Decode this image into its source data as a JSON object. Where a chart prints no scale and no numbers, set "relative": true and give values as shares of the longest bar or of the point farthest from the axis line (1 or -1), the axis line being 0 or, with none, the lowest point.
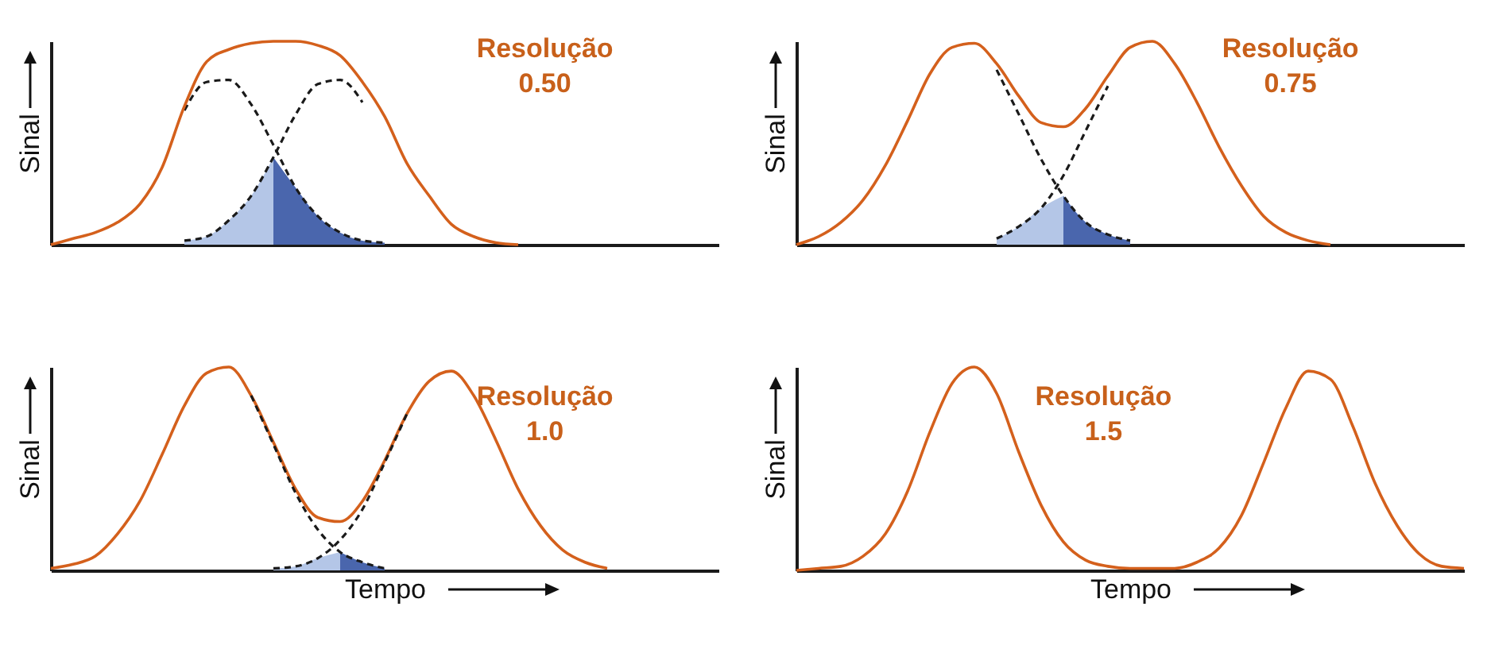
{
  "chart_data": [
    {
      "type": "line",
      "relative": true,
      "tick_labels": false,
      "ylabel": "Sinal",
      "annotations": [
        "Resolução",
        "0.50"
      ],
      "categories": [
        null,
        null,
        null,
        null,
        null,
        null,
        null,
        null,
        null,
        null,
        null,
        null,
        null,
        null,
        null,
        null,
        null,
        null,
        null,
        null,
        null,
        null,
        null,
        null,
        null,
        null,
        null,
        null,
        null,
        null,
        null
      ],
      "series": [
        {
          "type": "area",
          "color": "#b4c6e7",
          "values": [
            null,
            null,
            null,
            null,
            null,
            null,
            0.02,
            0.04,
            0.12,
            0.24,
            0.43,
            null,
            null,
            null,
            null,
            null,
            null,
            null,
            null,
            null,
            null,
            null,
            null,
            null,
            null,
            null,
            null,
            null,
            null,
            null,
            null
          ]
        },
        {
          "type": "area",
          "color": "#4a66ad",
          "values": [
            null,
            null,
            null,
            null,
            null,
            null,
            null,
            null,
            null,
            null,
            0.43,
            0.28,
            0.14,
            0.06,
            0.02,
            0.01,
            null,
            null,
            null,
            null,
            null,
            null,
            null,
            null,
            null,
            null,
            null,
            null,
            null,
            null,
            null
          ]
        },
        {
          "type": "line",
          "line_style": "dashed",
          "color": "#1a1a1a",
          "values": [
            null,
            null,
            null,
            null,
            null,
            null,
            0.66,
            0.8,
            0.81,
            0.69,
            0.49,
            0.28,
            0.14,
            0.06,
            0.02,
            0.01,
            null,
            null,
            null,
            null,
            null,
            null,
            null,
            null,
            null,
            null,
            null,
            null,
            null,
            null,
            null
          ]
        },
        {
          "type": "line",
          "line_style": "dashed",
          "color": "#1a1a1a",
          "values": [
            null,
            null,
            null,
            null,
            null,
            null,
            0.02,
            0.04,
            0.12,
            0.24,
            0.43,
            0.64,
            0.79,
            0.81,
            0.7,
            null,
            null,
            null,
            null,
            null,
            null,
            null,
            null,
            null,
            null,
            null,
            null,
            null,
            null,
            null,
            null
          ]
        },
        {
          "type": "line",
          "line_style": "solid",
          "color": "#d4601c",
          "values": [
            0,
            0.03,
            0.06,
            0.11,
            0.2,
            0.38,
            0.68,
            0.9,
            0.96,
            0.99,
            1.0,
            1.0,
            0.98,
            0.93,
            0.8,
            0.63,
            0.4,
            0.24,
            0.1,
            0.04,
            0.01,
            0,
            null,
            null,
            null,
            null,
            null,
            null,
            null,
            null,
            null
          ]
        }
      ]
    },
    {
      "type": "line",
      "relative": true,
      "tick_labels": false,
      "ylabel": "Sinal",
      "annotations": [
        "Resolução",
        "0.75"
      ],
      "categories": [
        null,
        null,
        null,
        null,
        null,
        null,
        null,
        null,
        null,
        null,
        null,
        null,
        null,
        null,
        null,
        null,
        null,
        null,
        null,
        null,
        null,
        null,
        null,
        null,
        null,
        null,
        null,
        null,
        null,
        null,
        null
      ],
      "series": [
        {
          "type": "area",
          "color": "#b4c6e7",
          "values": [
            null,
            null,
            null,
            null,
            null,
            null,
            null,
            null,
            null,
            0.03,
            0.09,
            0.18,
            0.24,
            null,
            null,
            null,
            null,
            null,
            null,
            null,
            null,
            null,
            null,
            null,
            null,
            null,
            null,
            null,
            null,
            null,
            null
          ]
        },
        {
          "type": "area",
          "color": "#4a66ad",
          "values": [
            null,
            null,
            null,
            null,
            null,
            null,
            null,
            null,
            null,
            null,
            null,
            null,
            0.24,
            0.11,
            0.05,
            0.02,
            null,
            null,
            null,
            null,
            null,
            null,
            null,
            null,
            null,
            null,
            null,
            null,
            null,
            null,
            null
          ]
        },
        {
          "type": "line",
          "line_style": "dashed",
          "color": "#1a1a1a",
          "values": [
            null,
            null,
            null,
            null,
            null,
            null,
            null,
            null,
            null,
            0.86,
            0.64,
            0.42,
            0.24,
            0.11,
            0.05,
            0.02,
            null,
            null,
            null,
            null,
            null,
            null,
            null,
            null,
            null,
            null,
            null,
            null,
            null,
            null,
            null
          ]
        },
        {
          "type": "line",
          "line_style": "dashed",
          "color": "#1a1a1a",
          "values": [
            null,
            null,
            null,
            null,
            null,
            null,
            null,
            null,
            null,
            0.03,
            0.09,
            0.18,
            0.34,
            0.56,
            0.78,
            null,
            null,
            null,
            null,
            null,
            null,
            null,
            null,
            null,
            null,
            null,
            null,
            null,
            null,
            null,
            null
          ]
        },
        {
          "type": "line",
          "line_style": "solid",
          "color": "#d4601c",
          "values": [
            0,
            0.04,
            0.11,
            0.22,
            0.39,
            0.61,
            0.84,
            0.97,
            0.99,
            0.89,
            0.73,
            0.6,
            0.58,
            0.67,
            0.83,
            0.97,
            1.0,
            0.89,
            0.7,
            0.48,
            0.29,
            0.14,
            0.06,
            0.02,
            0,
            null,
            null,
            null,
            null,
            null,
            null
          ]
        }
      ]
    },
    {
      "type": "line",
      "relative": true,
      "tick_labels": false,
      "ylabel": "Sinal",
      "xlabel": "Tempo",
      "annotations": [
        "Resolução",
        "1.0"
      ],
      "categories": [
        null,
        null,
        null,
        null,
        null,
        null,
        null,
        null,
        null,
        null,
        null,
        null,
        null,
        null,
        null,
        null,
        null,
        null,
        null,
        null,
        null,
        null,
        null,
        null,
        null,
        null,
        null,
        null,
        null,
        null,
        null
      ],
      "series": [
        {
          "type": "area",
          "color": "#b4c6e7",
          "values": [
            null,
            null,
            null,
            null,
            null,
            null,
            null,
            null,
            null,
            null,
            0.01,
            0.02,
            0.06,
            0.09,
            null,
            null,
            null,
            null,
            null,
            null,
            null,
            null,
            null,
            null,
            null,
            null,
            null,
            null,
            null,
            null,
            null
          ]
        },
        {
          "type": "area",
          "color": "#4a66ad",
          "values": [
            null,
            null,
            null,
            null,
            null,
            null,
            null,
            null,
            null,
            null,
            null,
            null,
            null,
            0.09,
            0.04,
            0.01,
            null,
            null,
            null,
            null,
            null,
            null,
            null,
            null,
            null,
            null,
            null,
            null,
            null,
            null,
            null
          ]
        },
        {
          "type": "line",
          "line_style": "solid",
          "color": "#d4601c",
          "values": [
            0.01,
            0.03,
            0.07,
            0.18,
            0.34,
            0.57,
            0.81,
            0.97,
            1.0,
            0.86,
            0.63,
            0.4,
            0.26,
            0.24,
            0.34,
            0.54,
            0.77,
            0.93,
            0.98,
            0.86,
            0.64,
            0.4,
            0.22,
            0.1,
            0.04,
            0.01,
            null,
            null,
            null,
            null,
            null
          ]
        },
        {
          "type": "line",
          "line_style": "dashed",
          "color": "#1a1a1a",
          "values": [
            null,
            null,
            null,
            null,
            null,
            null,
            null,
            null,
            null,
            0.86,
            0.62,
            0.38,
            0.2,
            0.09,
            0.04,
            0.01,
            null,
            null,
            null,
            null,
            null,
            null,
            null,
            null,
            null,
            null,
            null,
            null,
            null,
            null,
            null
          ]
        },
        {
          "type": "line",
          "line_style": "dashed",
          "color": "#1a1a1a",
          "values": [
            null,
            null,
            null,
            null,
            null,
            null,
            null,
            null,
            null,
            null,
            0.01,
            0.02,
            0.06,
            0.15,
            0.3,
            0.53,
            0.77,
            null,
            null,
            null,
            null,
            null,
            null,
            null,
            null,
            null,
            null,
            null,
            null,
            null,
            null
          ]
        }
      ]
    },
    {
      "type": "line",
      "relative": true,
      "tick_labels": false,
      "ylabel": "Sinal",
      "xlabel": "Tempo",
      "annotations": [
        "Resolução",
        "1.5"
      ],
      "categories": [
        null,
        null,
        null,
        null,
        null,
        null,
        null,
        null,
        null,
        null,
        null,
        null,
        null,
        null,
        null,
        null,
        null,
        null,
        null,
        null,
        null,
        null,
        null,
        null,
        null,
        null,
        null,
        null,
        null,
        null,
        null
      ],
      "series": [
        {
          "type": "line",
          "line_style": "solid",
          "color": "#d4601c",
          "values": [
            0,
            0.01,
            0.02,
            0.07,
            0.18,
            0.39,
            0.68,
            0.92,
            1.0,
            0.87,
            0.58,
            0.32,
            0.14,
            0.05,
            0.02,
            0.01,
            0.01,
            0.01,
            0.04,
            0.11,
            0.27,
            0.53,
            0.8,
            0.98,
            0.94,
            0.71,
            0.43,
            0.22,
            0.08,
            0.02,
            0.01
          ]
        }
      ]
    }
  ]
}
